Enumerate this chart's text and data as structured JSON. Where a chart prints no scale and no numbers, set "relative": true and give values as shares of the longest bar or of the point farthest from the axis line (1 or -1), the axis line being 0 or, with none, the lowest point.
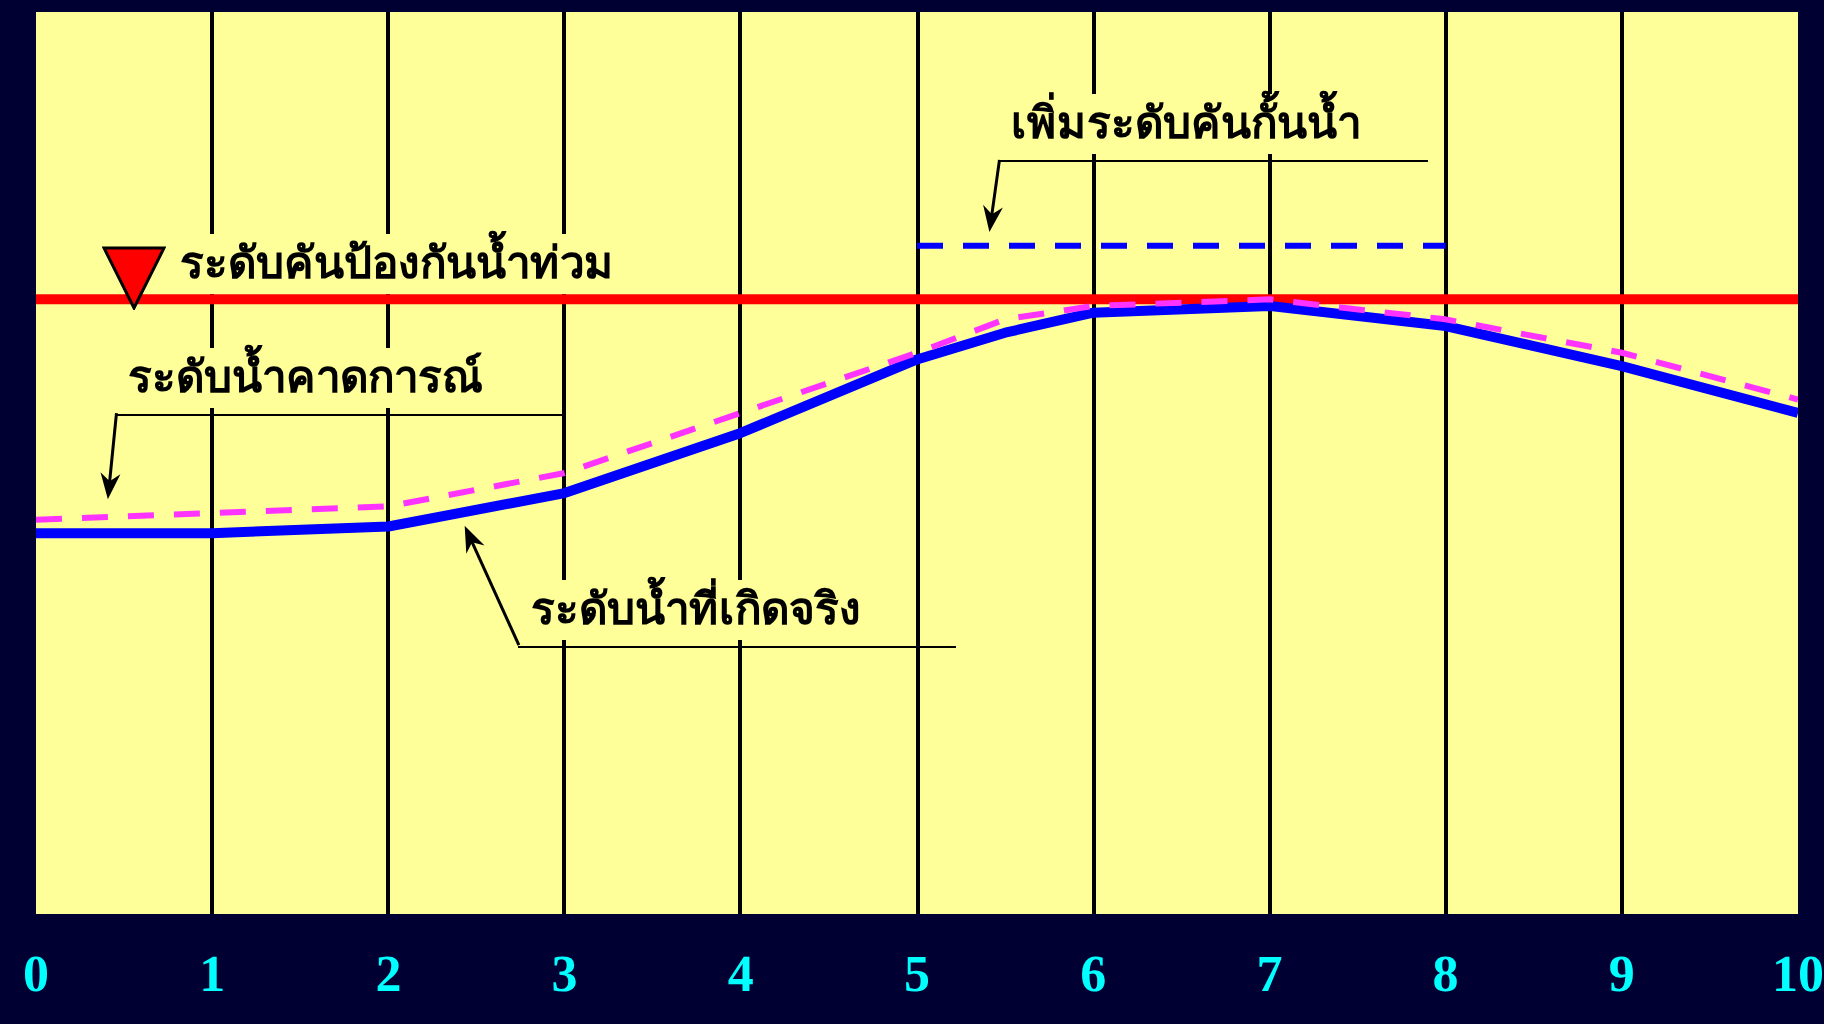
{
  "chart_data": {
    "type": "line",
    "relative": true,
    "legend": "top left",
    "grid": "x",
    "marker": "none",
    "x": [
      0,
      1,
      2,
      3,
      4,
      5,
      5.5,
      6,
      7,
      8,
      9,
      10
    ],
    "xlim": [
      0,
      10
    ],
    "xticks": [
      0,
      1,
      2,
      3,
      4,
      5,
      6,
      7,
      8,
      9,
      10
    ],
    "series": [
      {
        "name": "ระดับคันป้องกันน้ำท่วม",
        "color": "#ff0000",
        "line_style": "solid",
        "x": [
          0,
          10
        ],
        "values": [
          0.92,
          0.92
        ]
      },
      {
        "color": "#0000ff",
        "line_style": "solid",
        "values": [
          0.57,
          0.57,
          0.58,
          0.63,
          0.72,
          0.83,
          0.87,
          0.9,
          0.91,
          0.88,
          0.82,
          0.75
        ]
      },
      {
        "color": "#ff33ff",
        "line_style": "dashed",
        "values": [
          0.59,
          0.6,
          0.61,
          0.66,
          0.75,
          0.84,
          0.89,
          0.91,
          0.92,
          0.89,
          0.84,
          0.77
        ]
      },
      {
        "color": "#0000ff",
        "line_style": "dashed",
        "x": [
          5,
          8
        ],
        "values": [
          1,
          1
        ]
      }
    ],
    "annotations": [
      {
        "text": "เพิ่มระดับคันกั้นน้ำ",
        "x": 5.4,
        "y": 1
      },
      {
        "text": "ระดับน้ำคาดการณ์",
        "x": 0.4,
        "y": 0.6
      },
      {
        "text": "ระดับน้ำที่เกิดจริง",
        "x": 2.4,
        "y": 0.6
      }
    ]
  }
}
